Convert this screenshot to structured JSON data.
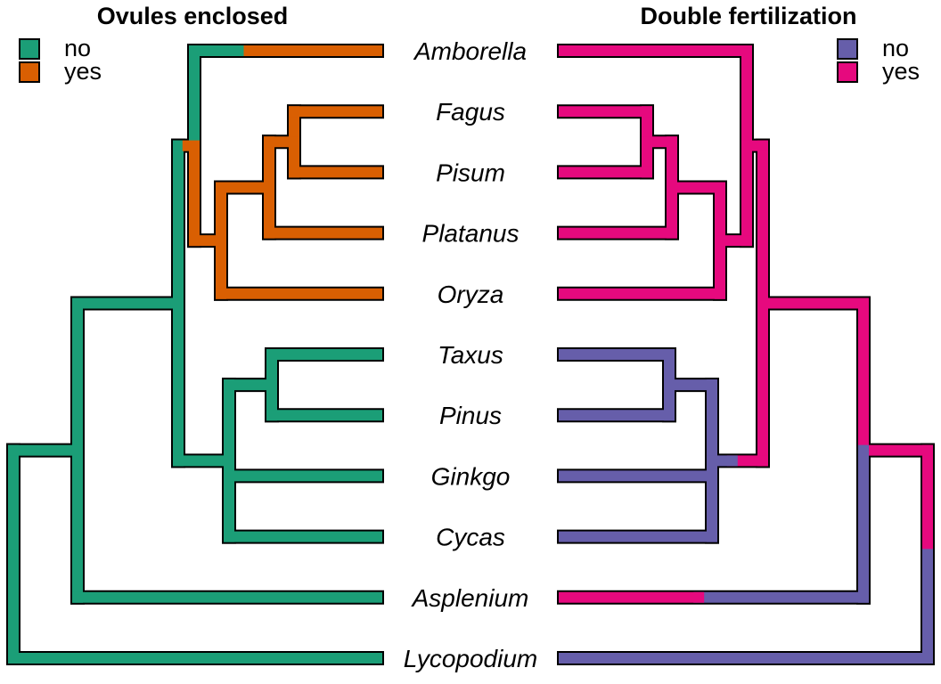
{
  "colors": {
    "left_no": "#1b9e77",
    "left_yes": "#d95f02",
    "right_no": "#665eaa",
    "right_yes": "#e6097e"
  },
  "left_panel": {
    "title": "Ovules enclosed",
    "legend": [
      {
        "label": "no",
        "color": "#1b9e77"
      },
      {
        "label": "yes",
        "color": "#d95f02"
      }
    ]
  },
  "right_panel": {
    "title": "Double fertilization",
    "legend": [
      {
        "label": "no",
        "color": "#665eaa"
      },
      {
        "label": "yes",
        "color": "#e6097e"
      }
    ]
  },
  "taxa": [
    "Amborella",
    "Fagus",
    "Pisum",
    "Platanus",
    "Oryza",
    "Taxus",
    "Pinus",
    "Ginkgo",
    "Cycas",
    "Asplenium",
    "Lycopodium"
  ],
  "tree": {
    "name": "root",
    "children": [
      {
        "name": "n_ferns",
        "children": [
          {
            "name": "n_seed",
            "children": [
              {
                "name": "n_angio",
                "children": [
                  {
                    "name": "Amborella"
                  },
                  {
                    "name": "n_core",
                    "children": [
                      {
                        "name": "n_eud",
                        "children": [
                          {
                            "name": "n_fp",
                            "children": [
                              {
                                "name": "Fagus"
                              },
                              {
                                "name": "Pisum"
                              }
                            ]
                          },
                          {
                            "name": "Platanus"
                          }
                        ]
                      },
                      {
                        "name": "Oryza"
                      }
                    ]
                  }
                ]
              },
              {
                "name": "n_gymno",
                "children": [
                  {
                    "name": "n_tp",
                    "children": [
                      {
                        "name": "Taxus"
                      },
                      {
                        "name": "Pinus"
                      }
                    ]
                  },
                  {
                    "name": "Ginkgo"
                  },
                  {
                    "name": "Cycas"
                  }
                ]
              }
            ]
          },
          {
            "name": "Asplenium"
          }
        ]
      },
      {
        "name": "Lycopodium"
      }
    ]
  },
  "character_maps": {
    "ovules_enclosed": {
      "Amborella": {
        "state": "yes",
        "switch_at": 0.3,
        "from": "no"
      },
      "n_angio": {
        "state": "no",
        "switch_at": 0.6,
        "to": "yes"
      },
      "n_core": {
        "state": "yes"
      },
      "n_eud": {
        "state": "yes"
      },
      "n_fp": {
        "state": "yes"
      },
      "Fagus": {
        "state": "yes"
      },
      "Pisum": {
        "state": "yes"
      },
      "Platanus": {
        "state": "yes"
      },
      "Oryza": {
        "state": "yes"
      },
      "default": {
        "state": "no"
      }
    },
    "double_fertilization": {
      "n_ferns": {
        "state": "yes"
      },
      "n_seed": {
        "state": "yes"
      },
      "n_angio": {
        "state": "yes"
      },
      "n_core": {
        "state": "yes"
      },
      "n_eud": {
        "state": "yes"
      },
      "n_fp": {
        "state": "yes"
      },
      "Amborella": {
        "state": "yes"
      },
      "Fagus": {
        "state": "yes"
      },
      "Pisum": {
        "state": "yes"
      },
      "Platanus": {
        "state": "yes"
      },
      "Oryza": {
        "state": "yes"
      },
      "Asplenium": {
        "state": "no",
        "switch_at": 0.55,
        "to": "yes"
      },
      "n_gymno": {
        "state": "no",
        "switch_at": 0.6,
        "from": "yes"
      },
      "default": {
        "state": "no"
      }
    }
  }
}
